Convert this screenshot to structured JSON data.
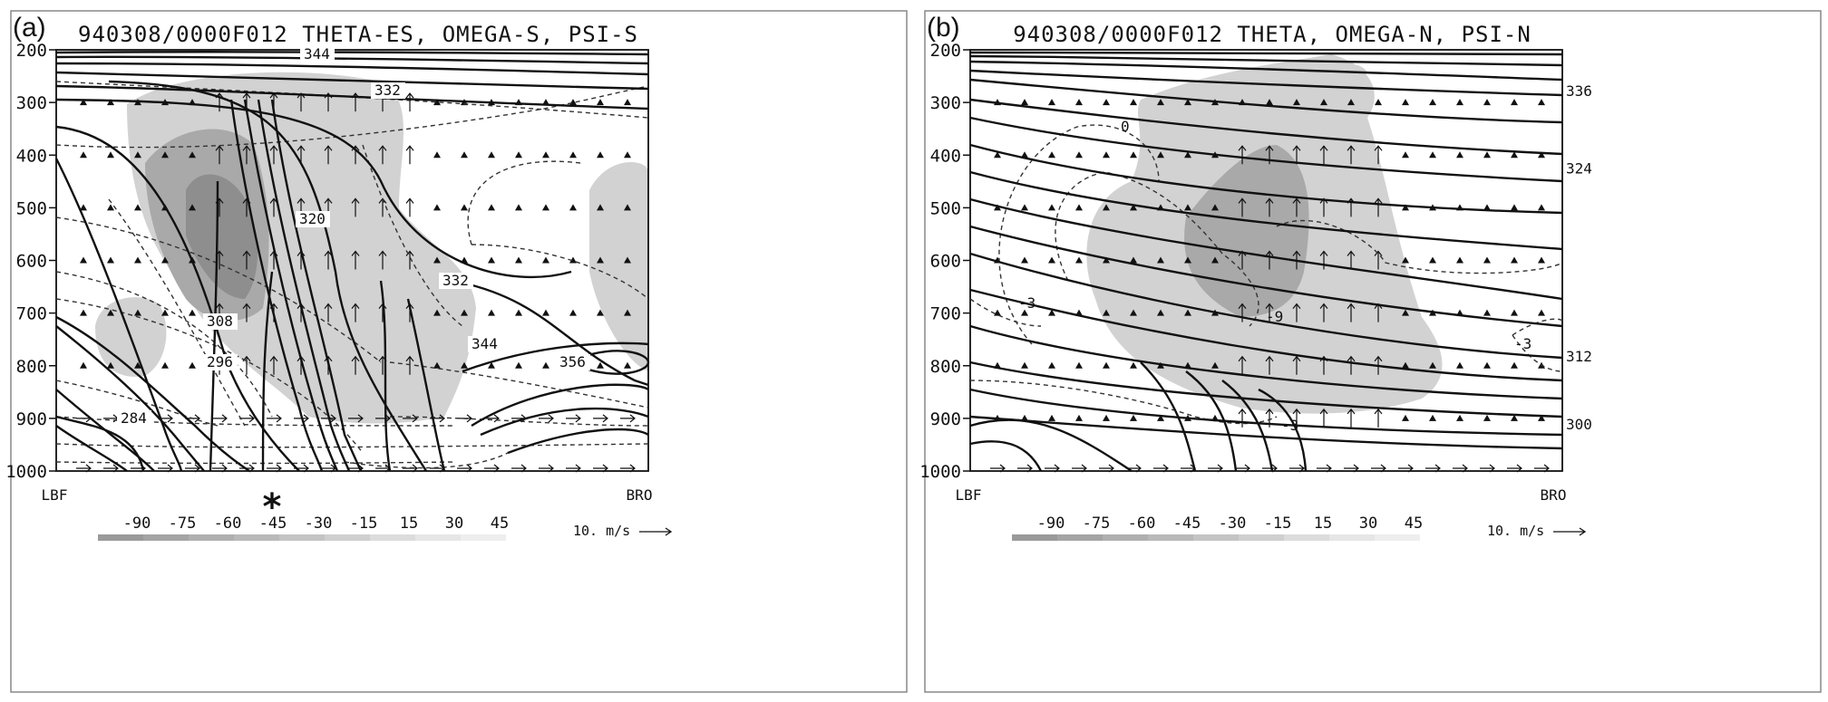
{
  "panels": [
    {
      "tag": "(a)",
      "title": "940308/0000F012 THETA-ES, OMEGA-S, PSI-S",
      "y_ticks": [
        "200",
        "300",
        "400",
        "500",
        "600",
        "700",
        "800",
        "900",
        "1000"
      ],
      "left_station": "LBF",
      "right_station": "BRO",
      "contour_labels": [
        "344",
        "332",
        "320",
        "332",
        "308",
        "296",
        "284",
        "344",
        "356"
      ],
      "right_labels": [],
      "omega_labels": [],
      "colorbar_labels": [
        "-90",
        "-75",
        "-60",
        "-45",
        "-30",
        "-15",
        "15",
        "30",
        "45"
      ],
      "scale_label": "10. m/s",
      "marker": "*"
    },
    {
      "tag": "(b)",
      "title": "940308/0000F012 THETA, OMEGA-N, PSI-N",
      "y_ticks": [
        "200",
        "300",
        "400",
        "500",
        "600",
        "700",
        "800",
        "900",
        "1000"
      ],
      "left_station": "LBF",
      "right_station": "BRO",
      "contour_labels": [],
      "right_labels": [
        "336",
        "324",
        "312",
        "300"
      ],
      "omega_labels": [
        "0",
        "-3",
        "-9",
        "-3",
        "-3"
      ],
      "colorbar_labels": [
        "-90",
        "-75",
        "-60",
        "-45",
        "-30",
        "-15",
        "15",
        "30",
        "45"
      ],
      "scale_label": "10. m/s",
      "marker": ""
    }
  ],
  "colors": {
    "shade_light": "#d2d2d2",
    "shade_mid": "#a9a9a9",
    "shade_dark": "#8e8e8e",
    "line": "#111111"
  }
}
